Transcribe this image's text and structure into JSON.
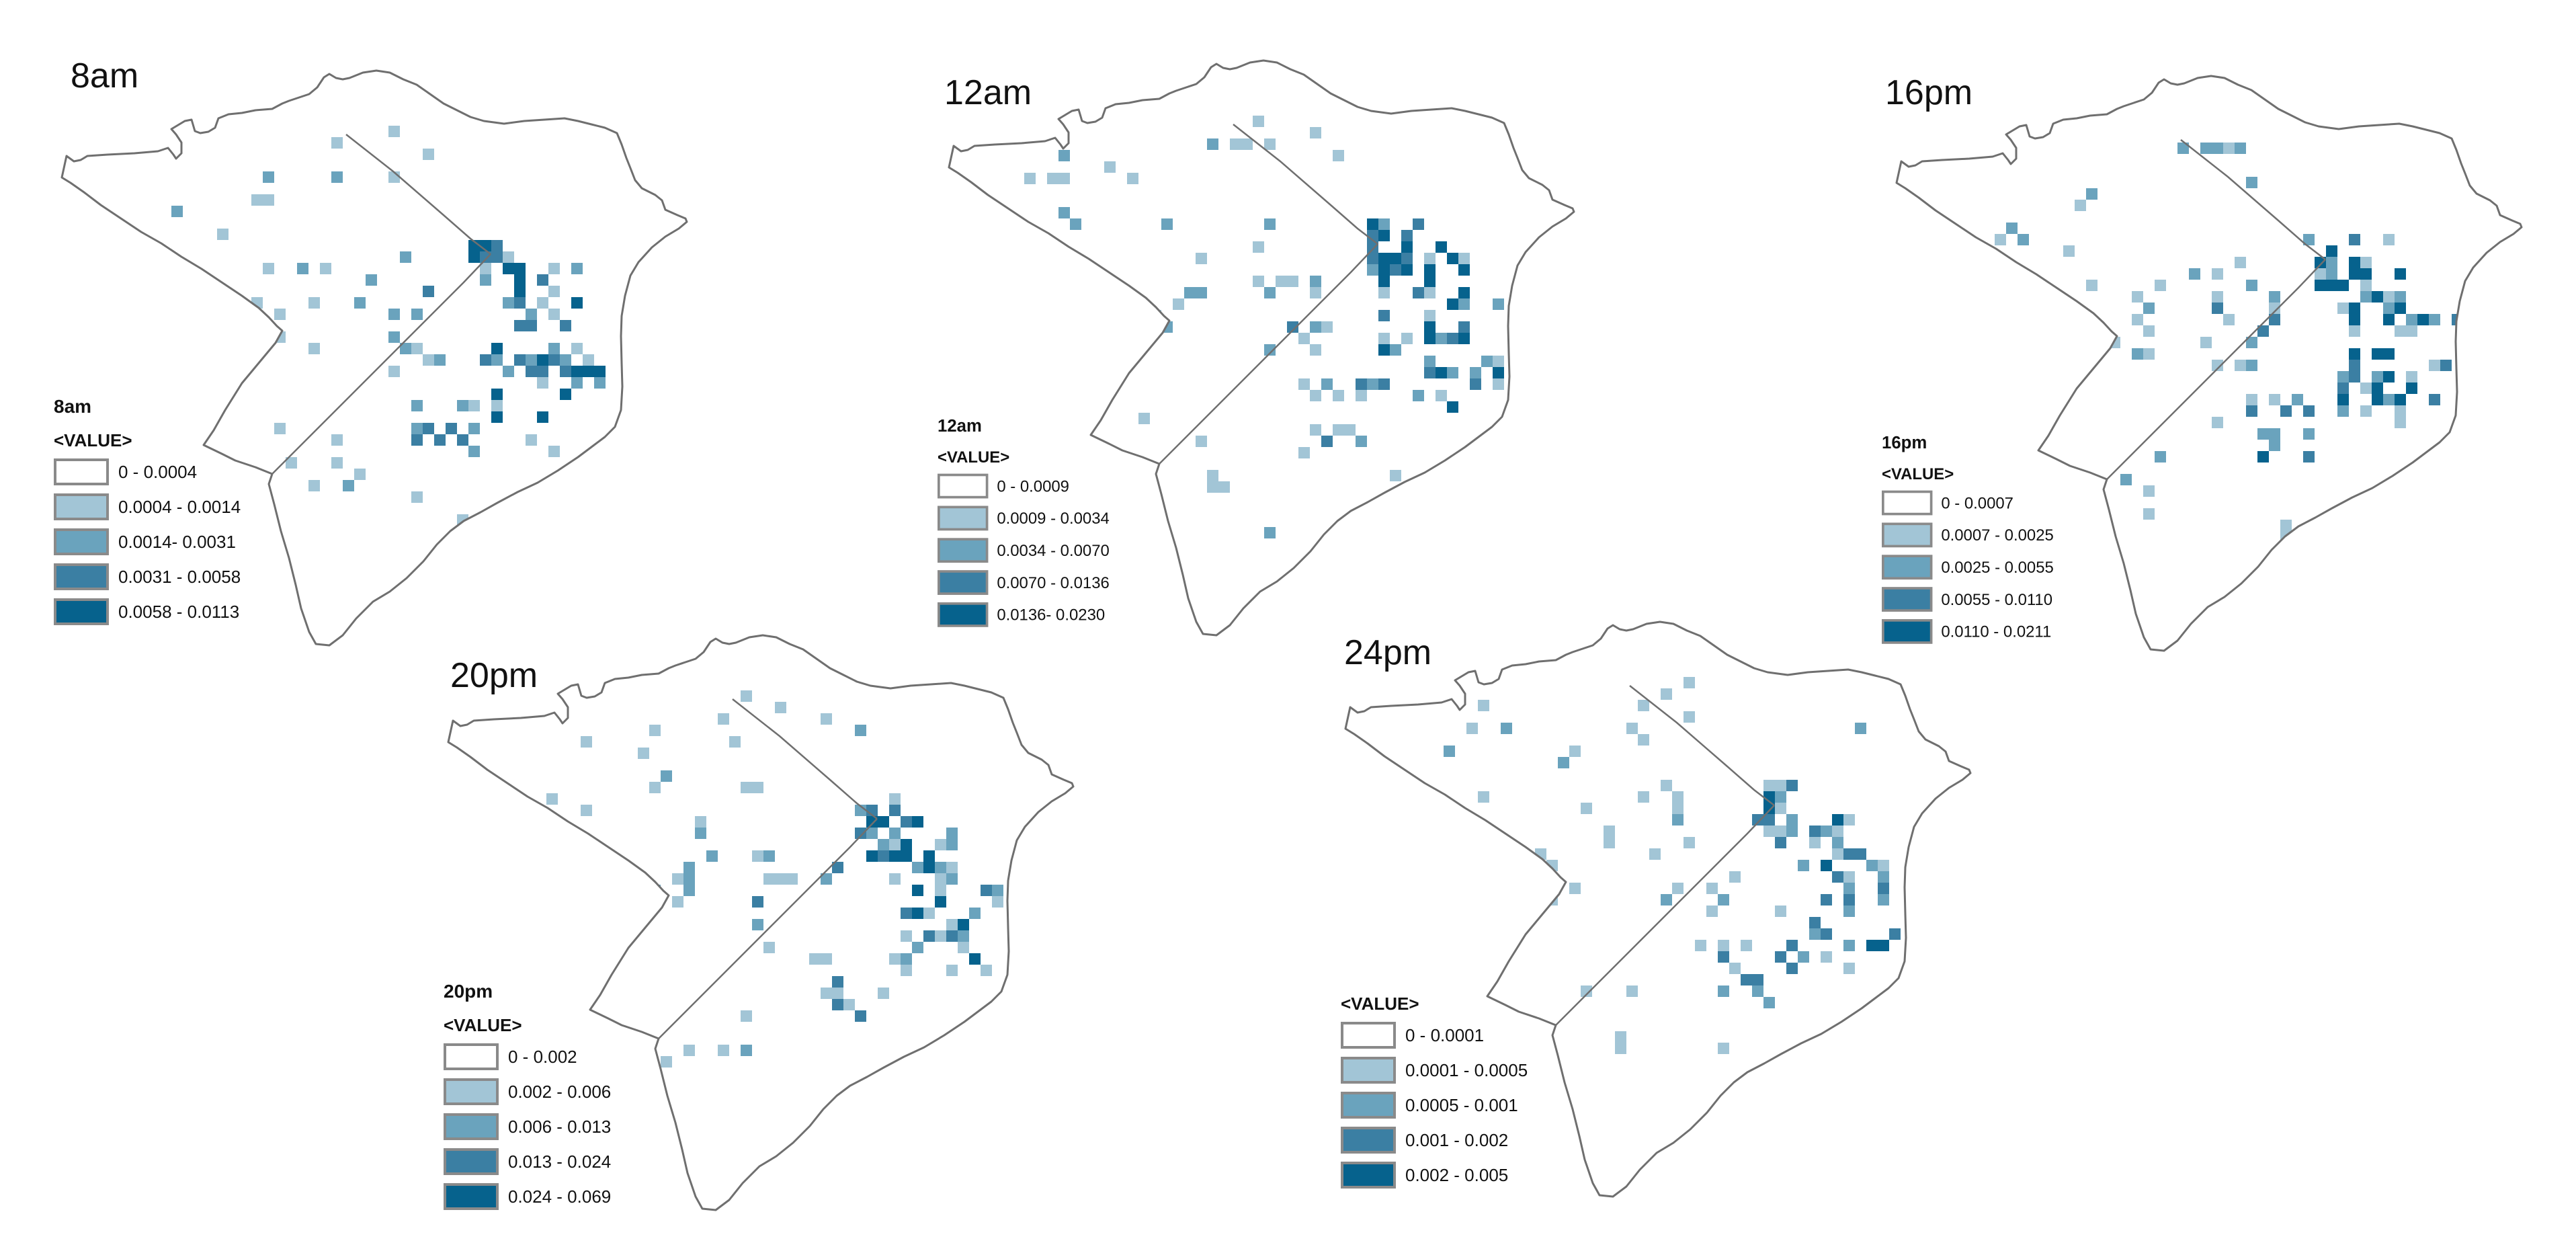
{
  "classes": {
    "colors": [
      "#ffffff",
      "#a2c5d6",
      "#6aa3bd",
      "#3b7fa3",
      "#06628d"
    ],
    "swatch_border": "#8a8a8a",
    "outline_color": "#6f6f6f"
  },
  "panels": [
    {
      "id": "8am",
      "title": "8am",
      "legend_title": "8am",
      "legend_field": "<VALUE>",
      "legend_labels": [
        "0 - 0.0004",
        "0.0004 - 0.0014",
        "0.0014- 0.0031",
        "0.0031 - 0.0058",
        "0.0058 - 0.0113"
      ]
    },
    {
      "id": "12am",
      "title": "12am",
      "legend_title": "12am",
      "legend_field": "<VALUE>",
      "legend_labels": [
        "0 - 0.0009",
        "0.0009 - 0.0034",
        "0.0034 - 0.0070",
        "0.0070 - 0.0136",
        "0.0136- 0.0230"
      ]
    },
    {
      "id": "16pm",
      "title": "16pm",
      "legend_title": "16pm",
      "legend_field": "<VALUE>",
      "legend_labels": [
        "0 - 0.0007",
        "0.0007 - 0.0025",
        "0.0025 - 0.0055",
        "0.0055 - 0.0110",
        "0.0110 - 0.0211"
      ]
    },
    {
      "id": "20pm",
      "title": "20pm",
      "legend_title": "20pm",
      "legend_field": "<VALUE>",
      "legend_labels": [
        "0 - 0.002",
        "0.002 - 0.006",
        "0.006 - 0.013",
        "0.013 - 0.024",
        "0.024 - 0.069"
      ]
    },
    {
      "id": "24pm",
      "title": "24pm",
      "legend_title": "",
      "legend_field": "<VALUE>",
      "legend_labels": [
        "0 - 0.0001",
        "0.0001 - 0.0005",
        "0.0005 - 0.001",
        "0.001 - 0.002",
        "0.002 - 0.005"
      ]
    }
  ]
}
